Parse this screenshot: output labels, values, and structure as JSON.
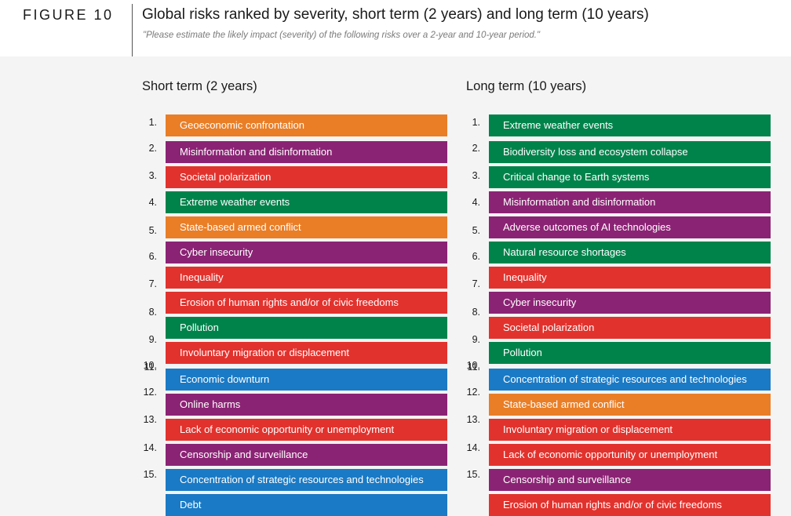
{
  "figure_label": "FIGURE 10",
  "title": "Global risks ranked by severity, short term (2 years) and long term (10 years)",
  "subtitle": "\"Please estimate the likely impact (severity) of the following risks over a 2-year and 10-year period.\"",
  "colors": {
    "orange": "#e97e27",
    "purple": "#8b2374",
    "red": "#e2322d",
    "green": "#00834b",
    "blue": "#1a7ac5"
  },
  "short_term": {
    "heading": "Short term (2 years)",
    "items": [
      {
        "rank": "1.",
        "label": "Geoeconomic confrontation",
        "category": "orange"
      },
      {
        "rank": "2.",
        "label": "Misinformation and disinformation",
        "category": "purple"
      },
      {
        "rank": "3.",
        "label": "Societal polarization",
        "category": "red"
      },
      {
        "rank": "4.",
        "label": "Extreme weather events",
        "category": "green"
      },
      {
        "rank": "5.",
        "label": "State-based armed conflict",
        "category": "orange"
      },
      {
        "rank": "6.",
        "label": "Cyber insecurity",
        "category": "purple"
      },
      {
        "rank": "7.",
        "label": "Inequality",
        "category": "red"
      },
      {
        "rank": "8.",
        "label": "Erosion of human rights and/or of civic freedoms",
        "category": "red"
      },
      {
        "rank": "9.",
        "label": "Pollution",
        "category": "green"
      },
      {
        "rank": "10.",
        "label": "Involuntary migration or displacement",
        "category": "red"
      },
      {
        "rank": "11.",
        "label": "Economic downturn",
        "category": "blue"
      },
      {
        "rank": "12.",
        "label": "Online  harms",
        "category": "purple"
      },
      {
        "rank": "13.",
        "label": "Lack of economic opportunity or unemployment",
        "category": "red"
      },
      {
        "rank": "14.",
        "label": "Censorship and surveillance",
        "category": "purple"
      },
      {
        "rank": "15.",
        "label": "Concentration of strategic resources and technologies",
        "category": "blue"
      },
      {
        "rank": "",
        "label": "Debt",
        "category": "blue"
      }
    ]
  },
  "long_term": {
    "heading": "Long term (10 years)",
    "items": [
      {
        "rank": "1.",
        "label": "Extreme weather events",
        "category": "green"
      },
      {
        "rank": "2.",
        "label": "Biodiversity loss and ecosystem collapse",
        "category": "green"
      },
      {
        "rank": "3.",
        "label": "Critical change to Earth systems",
        "category": "green"
      },
      {
        "rank": "4.",
        "label": "Misinformation and disinformation",
        "category": "purple"
      },
      {
        "rank": "5.",
        "label": "Adverse outcomes of AI technologies",
        "category": "purple"
      },
      {
        "rank": "6.",
        "label": "Natural resource shortages",
        "category": "green"
      },
      {
        "rank": "7.",
        "label": "Inequality",
        "category": "red"
      },
      {
        "rank": "8.",
        "label": "Cyber insecurity",
        "category": "purple"
      },
      {
        "rank": "9.",
        "label": "Societal polarization",
        "category": "red"
      },
      {
        "rank": "10.",
        "label": "Pollution",
        "category": "green"
      },
      {
        "rank": "11.",
        "label": "Concentration of strategic resources and technologies",
        "category": "blue"
      },
      {
        "rank": "12.",
        "label": "State-based armed conflict",
        "category": "orange"
      },
      {
        "rank": "13.",
        "label": "Involuntary migration or displacement",
        "category": "red"
      },
      {
        "rank": "14.",
        "label": "Lack of economic opportunity or unemployment",
        "category": "red"
      },
      {
        "rank": "15.",
        "label": "Censorship and surveillance",
        "category": "purple"
      },
      {
        "rank": "",
        "label": "Erosion of human rights and/or of civic freedoms",
        "category": "red"
      }
    ]
  }
}
